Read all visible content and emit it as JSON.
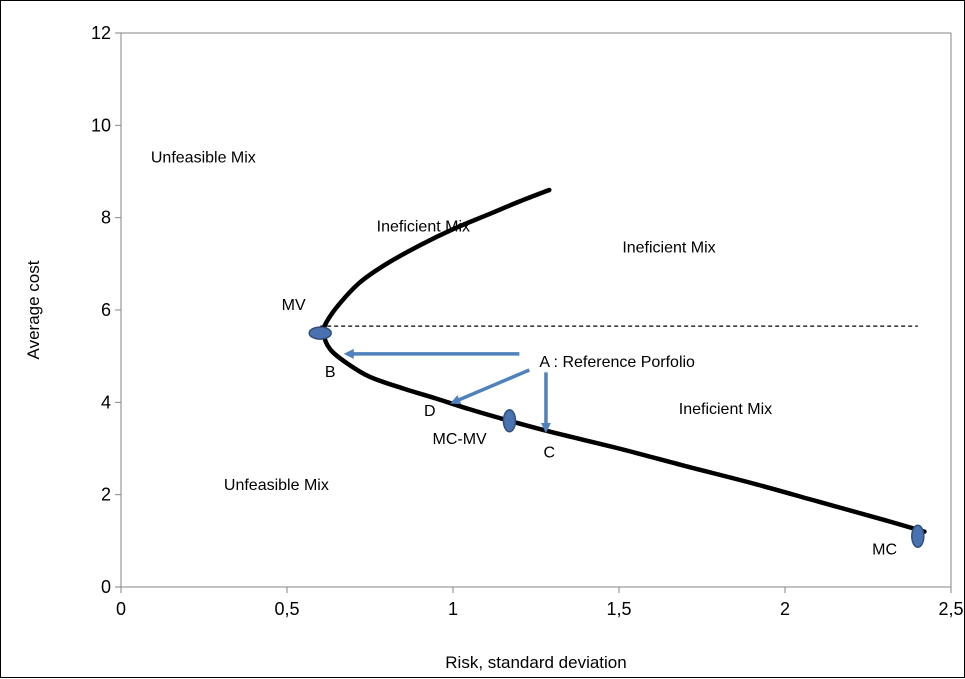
{
  "chart_data": {
    "type": "line",
    "title": "",
    "xlabel": "Risk, standard deviation",
    "ylabel": "Average cost",
    "xlim": [
      0,
      2.5
    ],
    "ylim": [
      0,
      12
    ],
    "xticks": [
      0,
      0.5,
      1,
      1.5,
      2,
      2.5
    ],
    "xtick_labels": [
      "0",
      "0,5",
      "1",
      "1,5",
      "2",
      "2,5"
    ],
    "yticks": [
      0,
      2,
      4,
      6,
      8,
      10,
      12
    ],
    "ytick_labels": [
      "0",
      "2",
      "4",
      "6",
      "8",
      "10",
      "12"
    ],
    "grid": false,
    "series": [
      {
        "name": "",
        "color": "#000000",
        "points": [
          [
            1.29,
            8.6
          ],
          [
            1.2,
            8.35
          ],
          [
            1.1,
            8.05
          ],
          [
            1.0,
            7.75
          ],
          [
            0.9,
            7.4
          ],
          [
            0.8,
            7.0
          ],
          [
            0.72,
            6.6
          ],
          [
            0.66,
            6.15
          ],
          [
            0.62,
            5.75
          ],
          [
            0.61,
            5.5
          ],
          [
            0.63,
            5.15
          ],
          [
            0.68,
            4.85
          ],
          [
            0.75,
            4.55
          ],
          [
            0.85,
            4.3
          ],
          [
            0.95,
            4.08
          ],
          [
            1.05,
            3.85
          ],
          [
            1.17,
            3.6
          ],
          [
            1.3,
            3.35
          ],
          [
            1.5,
            3.0
          ],
          [
            1.7,
            2.62
          ],
          [
            1.9,
            2.25
          ],
          [
            2.1,
            1.85
          ],
          [
            2.3,
            1.45
          ],
          [
            2.42,
            1.2
          ]
        ]
      }
    ],
    "reference_line": {
      "y": 5.65,
      "x_from": 0.6,
      "x_to": 2.4,
      "style": "dashed",
      "color": "#000000"
    },
    "markers": [
      {
        "label": "MV",
        "x": 0.6,
        "y": 5.5,
        "label_x": 0.52,
        "label_y": 6.0,
        "color": "#4a72b0"
      },
      {
        "label": "MC-MV",
        "x": 1.17,
        "y": 3.6,
        "label_x": 1.02,
        "label_y": 3.1,
        "color": "#4a72b0"
      },
      {
        "label": "MC",
        "x": 2.4,
        "y": 1.1,
        "label_x": 2.3,
        "label_y": 0.7,
        "color": "#4a72b0"
      }
    ],
    "point_labels": [
      {
        "label": "B",
        "x": 0.63,
        "y": 4.55
      },
      {
        "label": "D",
        "x": 0.93,
        "y": 3.7
      },
      {
        "label": "C",
        "x": 1.29,
        "y": 2.8
      }
    ],
    "reference": {
      "label": "A : Reference Porfolio",
      "x": 1.26,
      "y": 4.9
    },
    "arrows": [
      {
        "from": [
          1.2,
          5.05
        ],
        "to": [
          0.68,
          5.05
        ],
        "color": "#4f81bd"
      },
      {
        "from": [
          1.23,
          4.7
        ],
        "to": [
          1.0,
          4.0
        ],
        "color": "#4f81bd"
      },
      {
        "from": [
          1.28,
          4.65
        ],
        "to": [
          1.28,
          3.4
        ],
        "color": "#4f81bd"
      }
    ],
    "region_labels": [
      {
        "text": "Unfeasible Mix",
        "x": 0.09,
        "y": 9.2
      },
      {
        "text": "Ineficient Mix",
        "x": 0.77,
        "y": 7.7
      },
      {
        "text": "Ineficient Mix",
        "x": 1.51,
        "y": 7.25
      },
      {
        "text": "Ineficient Mix",
        "x": 1.68,
        "y": 3.75
      },
      {
        "text": "Unfeasible Mix",
        "x": 0.31,
        "y": 2.1
      }
    ]
  }
}
